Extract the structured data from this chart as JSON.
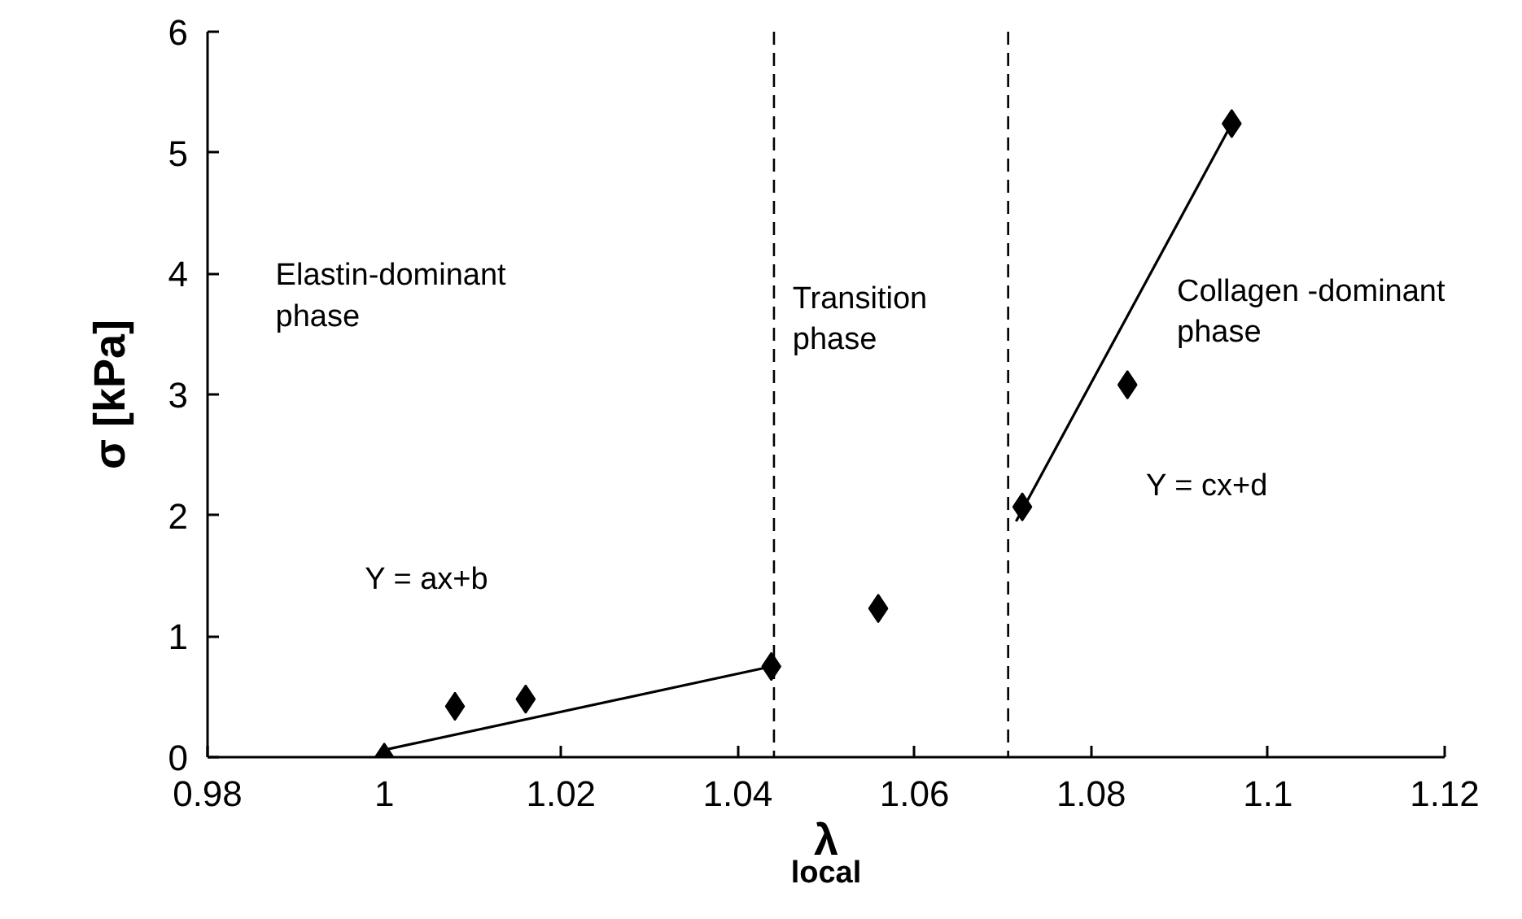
{
  "chart_data": {
    "type": "scatter",
    "xlabel": "λ$_{local}$",
    "ylabel": "σ [kPa]",
    "xlim": [
      0.98,
      1.12
    ],
    "ylim": [
      0,
      6
    ],
    "xticks": [
      0.98,
      1,
      1.02,
      1.04,
      1.06,
      1.08,
      1.1,
      1.12
    ],
    "yticks": [
      0,
      1,
      2,
      3,
      4,
      5,
      6
    ],
    "grid": false,
    "series": [
      {
        "marker": "diamond",
        "color": "#000000",
        "x": [
          1.0,
          1.008,
          1.016,
          1.0438,
          1.0559,
          1.0722,
          1.0841,
          1.0959
        ],
        "values": [
          0,
          0.42,
          0.48,
          0.75,
          1.23,
          2.07,
          3.08,
          5.24
        ]
      },
      {
        "type": "line",
        "color": "#000000",
        "x": [
          1.0,
          1.0438
        ],
        "values": [
          0.06,
          0.75
        ]
      },
      {
        "type": "line",
        "color": "#000000",
        "x": [
          1.0715,
          1.0959
        ],
        "values": [
          1.95,
          5.24
        ]
      }
    ],
    "ref_lines": [
      {
        "axis": "x",
        "value": 1.0441,
        "line_style": "dashed",
        "color": "#000000"
      },
      {
        "axis": "x",
        "value": 1.0706,
        "line_style": "dashed",
        "color": "#000000"
      }
    ],
    "annotations": [
      "Elastin-dominant\nphase",
      "Transition\nphase",
      "Collagen -dominant\nphase",
      "Y = ax+b",
      "Y = cx+d"
    ]
  }
}
